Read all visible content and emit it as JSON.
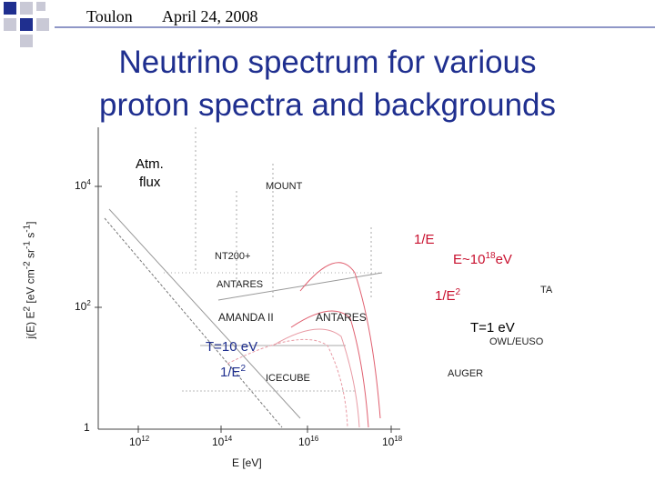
{
  "header": {
    "place": "Toulon",
    "date": "April 24, 2008"
  },
  "title": [
    "Neutrino spectrum for various",
    "proton spectra and backgrounds"
  ],
  "plot": {
    "y_label": [
      {
        "text": "j(E) E",
        "sup": "2"
      },
      {
        "text": " [eV cm",
        "sup": "-2"
      },
      {
        "text": " sr",
        "sup": "-1"
      },
      {
        "text": " s",
        "sup": "-1"
      },
      {
        "text": "]"
      }
    ],
    "y_ticks": [
      {
        "base": "10",
        "exp": "4"
      },
      {
        "base": "10",
        "exp": "2"
      },
      {
        "base": "1"
      }
    ],
    "x_ticks": [
      {
        "base": "10",
        "exp": "12"
      },
      {
        "base": "10",
        "exp": "14"
      },
      {
        "base": "10",
        "exp": "16"
      },
      {
        "base": "10",
        "exp": "18"
      }
    ],
    "x_label": "E [eV]",
    "experiments": [
      "MOUNT",
      "NT200+",
      "ANTARES",
      "AMANDA II",
      "ANTARES",
      "ICECUBE",
      "AUGER",
      "OWL/EUSO",
      "TA"
    ]
  },
  "annotations": {
    "atm": [
      "Atm.",
      "flux"
    ],
    "one_over_e": "1/E",
    "e_cut": {
      "text": "E~10",
      "sup": "18",
      "unit": "eV"
    },
    "one_over_e2_right": {
      "text": "1/E",
      "sup": "2"
    },
    "t1": "T=1 eV",
    "t10": "T=10 eV",
    "one_over_e2_left": {
      "text": "1/E",
      "sup": "2"
    }
  }
}
